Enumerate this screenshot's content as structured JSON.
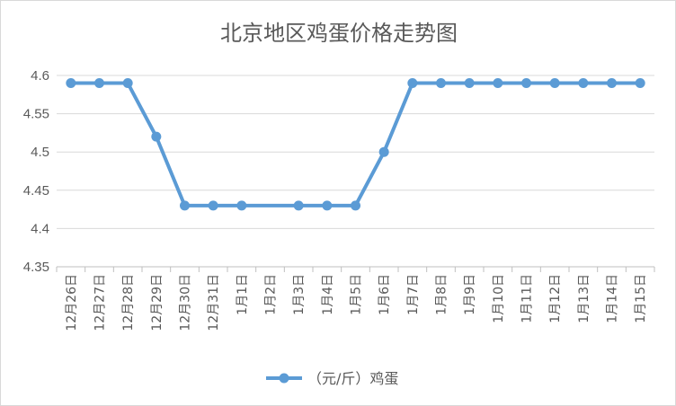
{
  "chart_data": {
    "type": "line",
    "title": "北京地区鸡蛋价格走势图",
    "categories": [
      "12月26日",
      "12月27日",
      "12月28日",
      "12月29日",
      "12月30日",
      "12月31日",
      "1月1日",
      "1月2日",
      "1月3日",
      "1月4日",
      "1月5日",
      "1月6日",
      "1月7日",
      "1月8日",
      "1月9日",
      "1月10日",
      "1月11日",
      "1月12日",
      "1月13日",
      "1月14日",
      "1月15日"
    ],
    "series": [
      {
        "name": "（元/斤）鸡蛋",
        "values": [
          4.59,
          4.59,
          4.59,
          4.52,
          4.43,
          4.43,
          4.43,
          null,
          4.43,
          4.43,
          4.43,
          4.5,
          4.59,
          4.59,
          4.59,
          4.59,
          4.59,
          4.59,
          4.59,
          4.59,
          4.59
        ],
        "color": "#5b9bd5"
      }
    ],
    "ylim": [
      4.35,
      4.6
    ],
    "yticks": [
      4.35,
      4.4,
      4.45,
      4.5,
      4.55,
      4.6
    ],
    "grid": true,
    "legend": "bottom",
    "xlabel": "",
    "ylabel": ""
  },
  "colors": {
    "line": "#5b9bd5",
    "grid": "#d9d9d9",
    "axis": "#bfbfbf",
    "text": "#595959"
  }
}
